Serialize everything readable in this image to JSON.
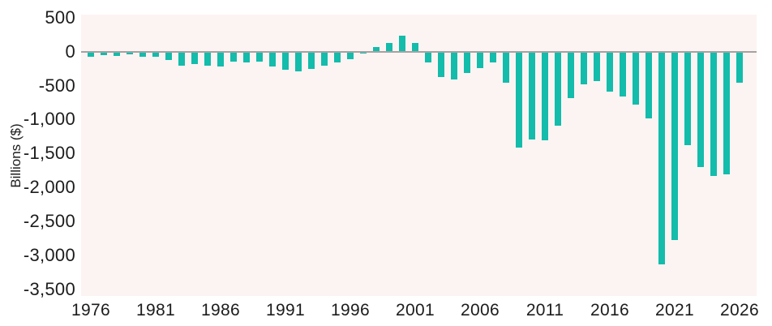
{
  "chart_data": {
    "type": "bar",
    "title": "",
    "ylabel": "Billions ($)",
    "xlabel": "",
    "grid": false,
    "legend": false,
    "ylim": [
      -3595,
      545
    ],
    "y_ticks": [
      {
        "value": 500,
        "label": "500"
      },
      {
        "value": 0,
        "label": "0"
      },
      {
        "value": -500,
        "label": "-500"
      },
      {
        "value": -1000,
        "label": "-1,000"
      },
      {
        "value": -1500,
        "label": "-1,500"
      },
      {
        "value": -2000,
        "label": "-2,000"
      },
      {
        "value": -2500,
        "label": "-2,500"
      },
      {
        "value": -3000,
        "label": "-3,000"
      },
      {
        "value": -3500,
        "label": "-3,500"
      }
    ],
    "x_ticks": [
      1976,
      1981,
      1986,
      1991,
      1996,
      2001,
      2006,
      2011,
      2016,
      2021,
      2026
    ],
    "years": [
      1976,
      1977,
      1978,
      1979,
      1980,
      1981,
      1982,
      1983,
      1984,
      1985,
      1986,
      1987,
      1988,
      1989,
      1990,
      1991,
      1992,
      1993,
      1994,
      1995,
      1996,
      1997,
      1998,
      1999,
      2000,
      2001,
      2002,
      2003,
      2004,
      2005,
      2006,
      2007,
      2008,
      2009,
      2010,
      2011,
      2012,
      2013,
      2014,
      2015,
      2016,
      2017,
      2018,
      2019,
      2020,
      2021,
      2022,
      2023,
      2024,
      2025,
      2026
    ],
    "values": [
      -74,
      -54,
      -59,
      -41,
      -74,
      -79,
      -128,
      -208,
      -185,
      -212,
      -221,
      -150,
      -155,
      -152,
      -221,
      -269,
      -290,
      -255,
      -203,
      -164,
      -107,
      -22,
      69,
      126,
      236,
      128,
      -158,
      -378,
      -413,
      -318,
      -248,
      -161,
      -459,
      -1413,
      -1294,
      -1300,
      -1087,
      -679,
      -485,
      -438,
      -585,
      -665,
      -779,
      -984,
      -3132,
      -2772,
      -1375,
      -1694,
      -1833,
      -1800,
      -460
    ],
    "colors": {
      "bar": "#13bcab",
      "plot_background": "#fcf4f3",
      "page_background": "#ffffff",
      "zero_line": "#a6a2a2",
      "text": "#1c1c1c"
    }
  }
}
